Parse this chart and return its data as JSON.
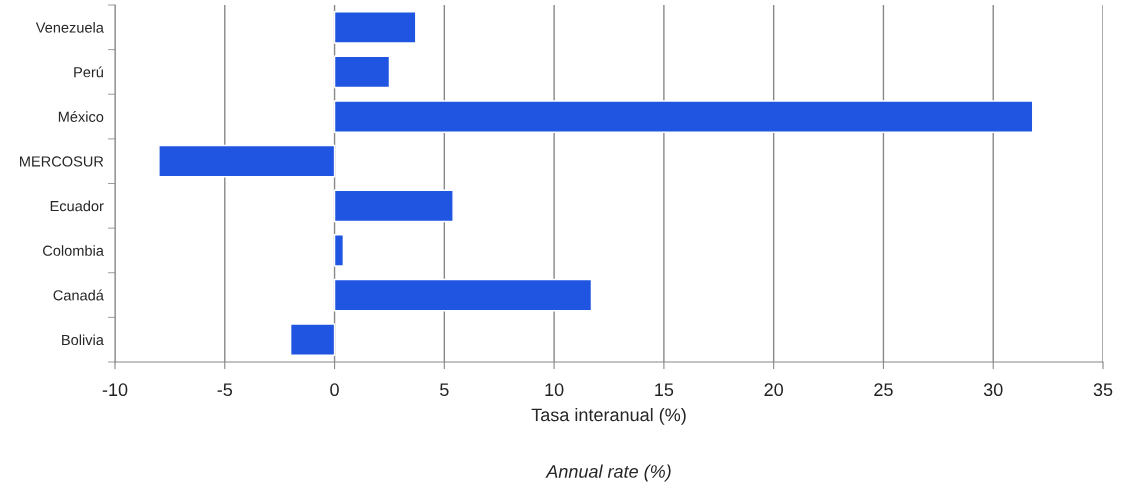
{
  "chart_data": {
    "type": "bar",
    "orientation": "horizontal",
    "categories": [
      "Venezuela",
      "Perú",
      "México",
      "MERCOSUR",
      "Ecuador",
      "Colombia",
      "Canadá",
      "Bolivia"
    ],
    "values": [
      3.7,
      2.5,
      31.8,
      -8.0,
      5.4,
      0.4,
      11.7,
      -2.0
    ],
    "color": "#1f55e0",
    "xlim": [
      -10,
      35
    ],
    "xticks": [
      -10,
      -5,
      0,
      5,
      10,
      15,
      20,
      25,
      30,
      35
    ],
    "xlabel": "Tasa interanual (%)",
    "annotations": [
      "Annual rate (%)"
    ],
    "grid": "x"
  }
}
